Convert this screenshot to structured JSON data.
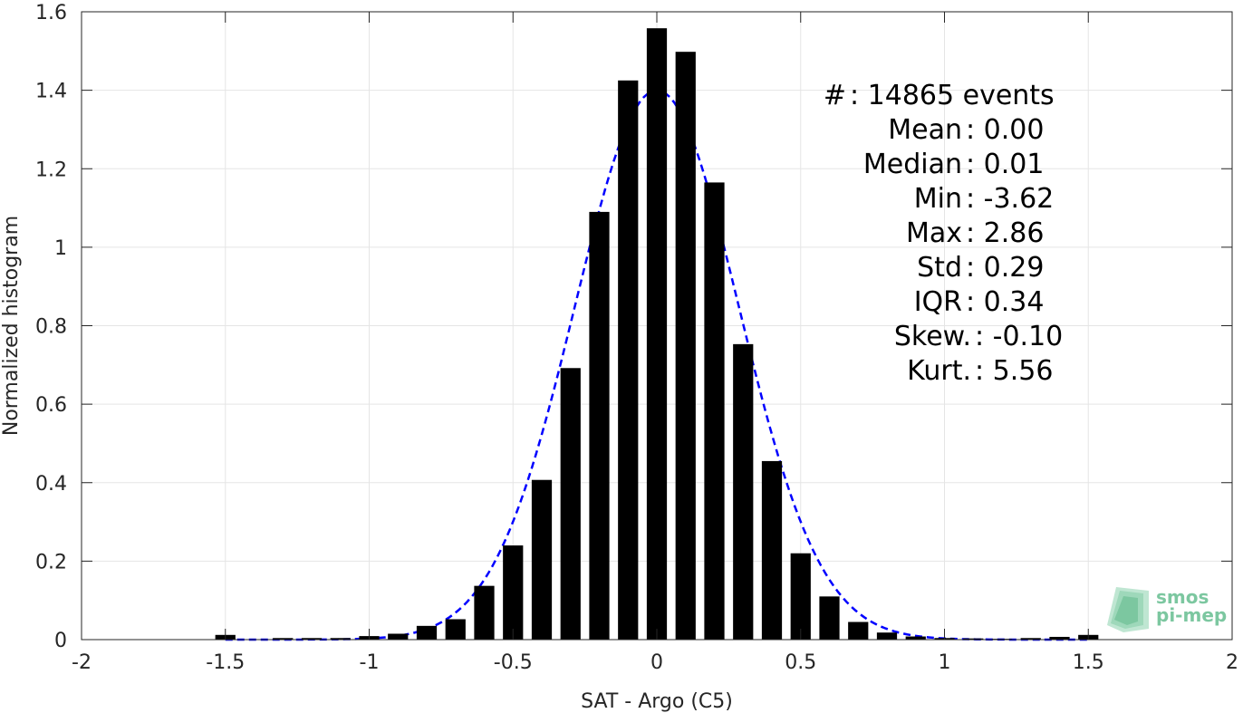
{
  "chart_data": {
    "type": "bar",
    "xlabel": "SAT - Argo (C5)",
    "ylabel": "Normalized histogram",
    "xlim": [
      -2,
      2
    ],
    "ylim": [
      0,
      1.6
    ],
    "grid": true,
    "xticks": [
      -2,
      -1.5,
      -1,
      -0.5,
      0,
      0.5,
      1,
      1.5,
      2
    ],
    "xtick_labels": [
      "-2",
      "-1.5",
      "-1",
      "-0.5",
      "0",
      "0.5",
      "1",
      "1.5",
      "2"
    ],
    "yticks": [
      0,
      0.2,
      0.4,
      0.6,
      0.8,
      1,
      1.2,
      1.4,
      1.6
    ],
    "ytick_labels": [
      "0",
      "0.2",
      "0.4",
      "0.6",
      "0.8",
      "1",
      "1.2",
      "1.4",
      "1.6"
    ],
    "bar_color": "#000000",
    "bar_width": 0.07,
    "bars": {
      "x": [
        -1.5,
        -1.4,
        -1.3,
        -1.2,
        -1.1,
        -1.0,
        -0.9,
        -0.8,
        -0.7,
        -0.6,
        -0.5,
        -0.4,
        -0.3,
        -0.2,
        -0.1,
        0.0,
        0.1,
        0.2,
        0.3,
        0.4,
        0.5,
        0.6,
        0.7,
        0.8,
        0.9,
        1.0,
        1.1,
        1.2,
        1.3,
        1.4,
        1.5
      ],
      "values": [
        0.012,
        0.0,
        0.004,
        0.004,
        0.004,
        0.009,
        0.015,
        0.035,
        0.052,
        0.137,
        0.24,
        0.407,
        0.692,
        1.09,
        1.425,
        1.558,
        1.498,
        1.165,
        0.753,
        0.455,
        0.22,
        0.11,
        0.045,
        0.018,
        0.008,
        0.004,
        0.003,
        0.002,
        0.004,
        0.007,
        0.012
      ]
    },
    "fit_curve": {
      "style": "dashed",
      "color": "#0000ff",
      "peak": 1.4,
      "mean": 0.0,
      "std": 0.285,
      "range": [
        -1.5,
        1.5
      ]
    },
    "annotations": [
      {
        "label": "#  ",
        "value": ": 14865 events"
      },
      {
        "label": "Mean ",
        "value": ": 0.00"
      },
      {
        "label": "Median ",
        "value": ": 0.01"
      },
      {
        "label": "Min ",
        "value": ": -3.62"
      },
      {
        "label": "Max ",
        "value": ": 2.86"
      },
      {
        "label": "Std ",
        "value": ": 0.29"
      },
      {
        "label": "IQR ",
        "value": ": 0.34"
      },
      {
        "label": "Skew. ",
        "value": ": -0.10"
      },
      {
        "label": "Kurt. ",
        "value": ": 5.56"
      }
    ]
  },
  "logo": {
    "line1": "smos",
    "line2": "pi-mep",
    "color": "#7cc7a0"
  }
}
